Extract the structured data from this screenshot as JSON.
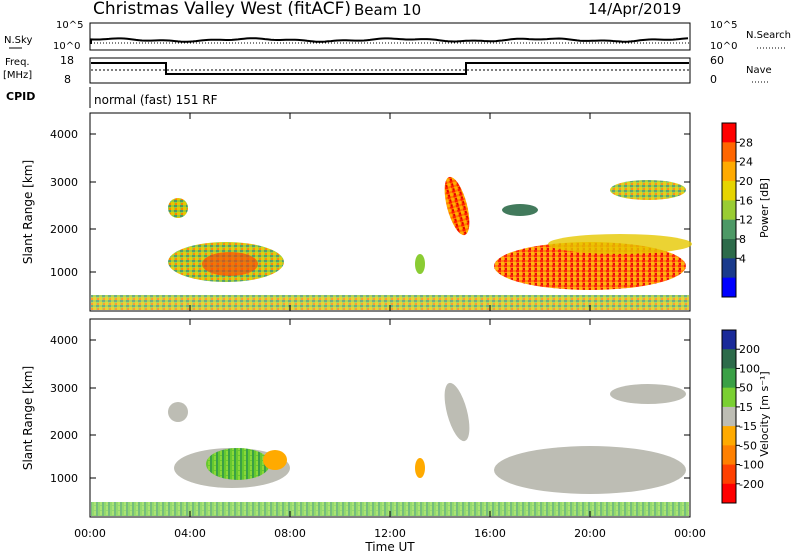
{
  "header": {
    "title": "Christmas Valley West (fitACF)",
    "beam": "Beam 10",
    "date": "14/Apr/2019"
  },
  "noise_panel": {
    "left_label": "N.Sky",
    "left_ticks": [
      "10^5",
      "10^0"
    ],
    "right_ticks": [
      "10^5",
      "10^0"
    ],
    "right_label": "N.Search"
  },
  "freq_panel": {
    "left_label_1": "Freq.",
    "left_label_2": "[MHz]",
    "left_ticks": [
      "18",
      "8"
    ],
    "right_ticks": [
      "60",
      "0"
    ],
    "right_label": "Nave"
  },
  "cpid": {
    "label": "CPID",
    "text": "normal (fast) 151 RF"
  },
  "chart_data": [
    {
      "type": "heatmap",
      "name": "power",
      "ylabel": "Slant Range [km]",
      "yticks": [
        "4000",
        "3000",
        "2000",
        "1000"
      ],
      "colorbar": {
        "label": "Power [dB]",
        "ticks": [
          "28",
          "24",
          "20",
          "16",
          "12",
          "8",
          "4"
        ],
        "colors": [
          "#ff0000",
          "#ff6600",
          "#ffaa00",
          "#e6d400",
          "#99cc33",
          "#4d9966",
          "#2d6b4a",
          "#1a3a8c",
          "#0000ff"
        ]
      }
    },
    {
      "type": "heatmap",
      "name": "velocity",
      "ylabel": "Slant Range [km]",
      "yticks": [
        "4000",
        "3000",
        "2000",
        "1000"
      ],
      "xticks": [
        "00:00",
        "04:00",
        "08:00",
        "12:00",
        "16:00",
        "20:00",
        "00:00"
      ],
      "xlabel": "Time UT",
      "colorbar": {
        "label": "Velocity [m s⁻¹]",
        "ticks": [
          "200",
          "100",
          "50",
          "15",
          "-15",
          "-50",
          "-100",
          "-200"
        ],
        "colors": [
          "#1a2a99",
          "#2d6b4a",
          "#3aa046",
          "#7ad032",
          "#bdbdb4",
          "#ffaa00",
          "#ff8000",
          "#ff4000",
          "#ff0000"
        ]
      }
    }
  ]
}
